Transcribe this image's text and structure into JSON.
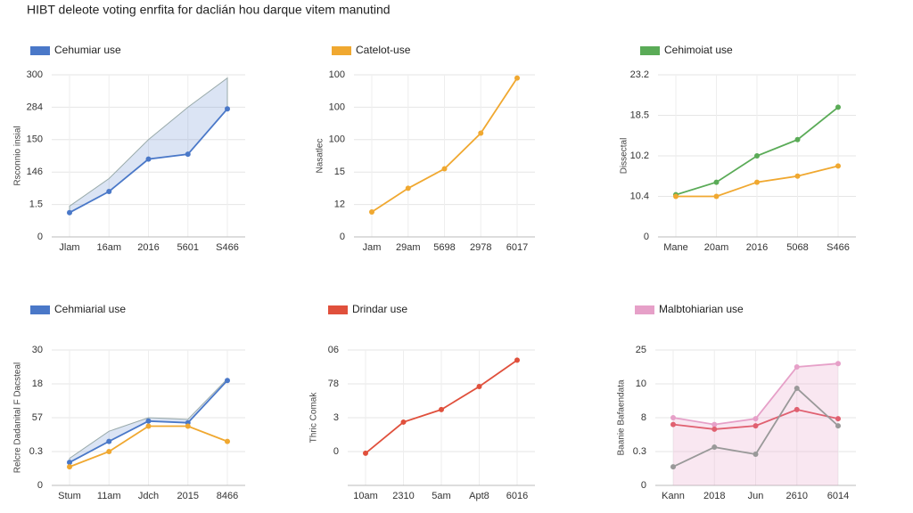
{
  "title": "HIBT deleote voting enrfita for daclián hou darque vitem manutind",
  "chart_data": [
    {
      "type": "line",
      "y_label": "Rsconnio insial",
      "categories": [
        "Jlam",
        "16am",
        "2016",
        "5601",
        "S466"
      ],
      "ylim": [
        0,
        5
      ],
      "yticks": [
        0,
        {
          "value": 1,
          "label": "1.5"
        },
        {
          "value": 2,
          "label": "146"
        },
        {
          "value": 3,
          "label": "150"
        },
        {
          "value": 4,
          "label": "284"
        },
        {
          "value": 5,
          "label": "300"
        }
      ],
      "grid": true,
      "series": [
        {
          "name": "Cehumiar use",
          "color": "#4a78c8",
          "values": [
            0.75,
            1.4,
            2.4,
            2.55,
            3.95
          ],
          "area_upper": [
            0.95,
            1.8,
            3,
            4,
            4.9
          ]
        }
      ]
    },
    {
      "type": "line",
      "y_label": "Nasatlec",
      "categories": [
        "Jam",
        "29am",
        "5698",
        "2978",
        "6017"
      ],
      "ylim": [
        0,
        5
      ],
      "yticks": [
        0,
        {
          "value": 1,
          "label": "12"
        },
        {
          "value": 2,
          "label": "15"
        },
        {
          "value": 3,
          "label": "100"
        },
        {
          "value": 4,
          "label": "100"
        },
        {
          "value": 5,
          "label": "100"
        }
      ],
      "grid": true,
      "series": [
        {
          "name": "Catelot-use",
          "color": "#f0a830",
          "values": [
            0.77,
            1.5,
            2.1,
            3.2,
            4.9
          ]
        }
      ]
    },
    {
      "type": "line",
      "y_label": "Dissectal",
      "categories": [
        "Mane",
        "20am",
        "2016",
        "5068",
        "S466"
      ],
      "ylim": [
        0,
        4
      ],
      "yticks": [
        0,
        {
          "value": 1,
          "label": "10.4"
        },
        {
          "value": 2,
          "label": "10.2"
        },
        {
          "value": 3,
          "label": "18.5"
        },
        {
          "value": 4,
          "label": "23.2"
        }
      ],
      "grid": true,
      "series": [
        {
          "name": "Cehimoiat use",
          "color": "#5aab57",
          "values": [
            1.04,
            1.35,
            2.0,
            2.4,
            3.2
          ]
        },
        {
          "color": "#f0a830",
          "values": [
            1.0,
            1.0,
            1.35,
            1.5,
            1.75
          ]
        }
      ]
    },
    {
      "type": "line",
      "y_label": "Relcre Dadanital F Dacsteal",
      "categories": [
        "Stum",
        "11am",
        "Jdch",
        "2015",
        "8466"
      ],
      "ylim": [
        0,
        4
      ],
      "yticks": [
        0,
        {
          "value": 1,
          "label": "0.3"
        },
        {
          "value": 2,
          "label": "57"
        },
        {
          "value": 3,
          "label": "18"
        },
        {
          "value": 4,
          "label": "30"
        }
      ],
      "grid": true,
      "series": [
        {
          "name": "Cehmiarial use",
          "color": "#4a78c8",
          "values": [
            0.68,
            1.3,
            1.9,
            1.85,
            3.1
          ],
          "area_upper": [
            0.8,
            1.6,
            2.0,
            1.95,
            3.15
          ]
        },
        {
          "color": "#f0a830",
          "values": [
            0.55,
            1.0,
            1.75,
            1.75,
            1.3
          ]
        }
      ]
    },
    {
      "type": "line",
      "y_label": "Thric Comak",
      "categories": [
        "10am",
        "2310",
        "5am",
        "Apt8",
        "6016"
      ],
      "ylim": [
        -1,
        3
      ],
      "yticks": [
        0,
        {
          "value": 1,
          "label": "3"
        },
        {
          "value": 2,
          "label": "78"
        },
        {
          "value": 3,
          "label": "06"
        }
      ],
      "grid": true,
      "series": [
        {
          "name": "Drindar use",
          "color": "#e0503c",
          "values": [
            -0.05,
            0.87,
            1.24,
            1.92,
            2.7
          ]
        }
      ]
    },
    {
      "type": "line",
      "y_label": "Baanie Bafaendata",
      "categories": [
        "Kann",
        "2018",
        "Jun",
        "2610",
        "6014"
      ],
      "ylim": [
        0,
        4
      ],
      "yticks": [
        0,
        {
          "value": 1,
          "label": "0.3"
        },
        {
          "value": 2,
          "label": "8"
        },
        {
          "value": 3,
          "label": "10"
        },
        {
          "value": 4,
          "label": "25"
        }
      ],
      "grid": true,
      "series": [
        {
          "name": "Malbtohiarian use",
          "color": "#e6a0c8",
          "values": [
            2.0,
            1.8,
            1.97,
            3.5,
            3.6
          ],
          "area": true
        },
        {
          "color": "#e06070",
          "values": [
            1.8,
            1.66,
            1.76,
            2.24,
            1.97
          ]
        },
        {
          "color": "#999999",
          "values": [
            0.55,
            1.13,
            0.92,
            2.87,
            1.76
          ]
        }
      ]
    }
  ]
}
